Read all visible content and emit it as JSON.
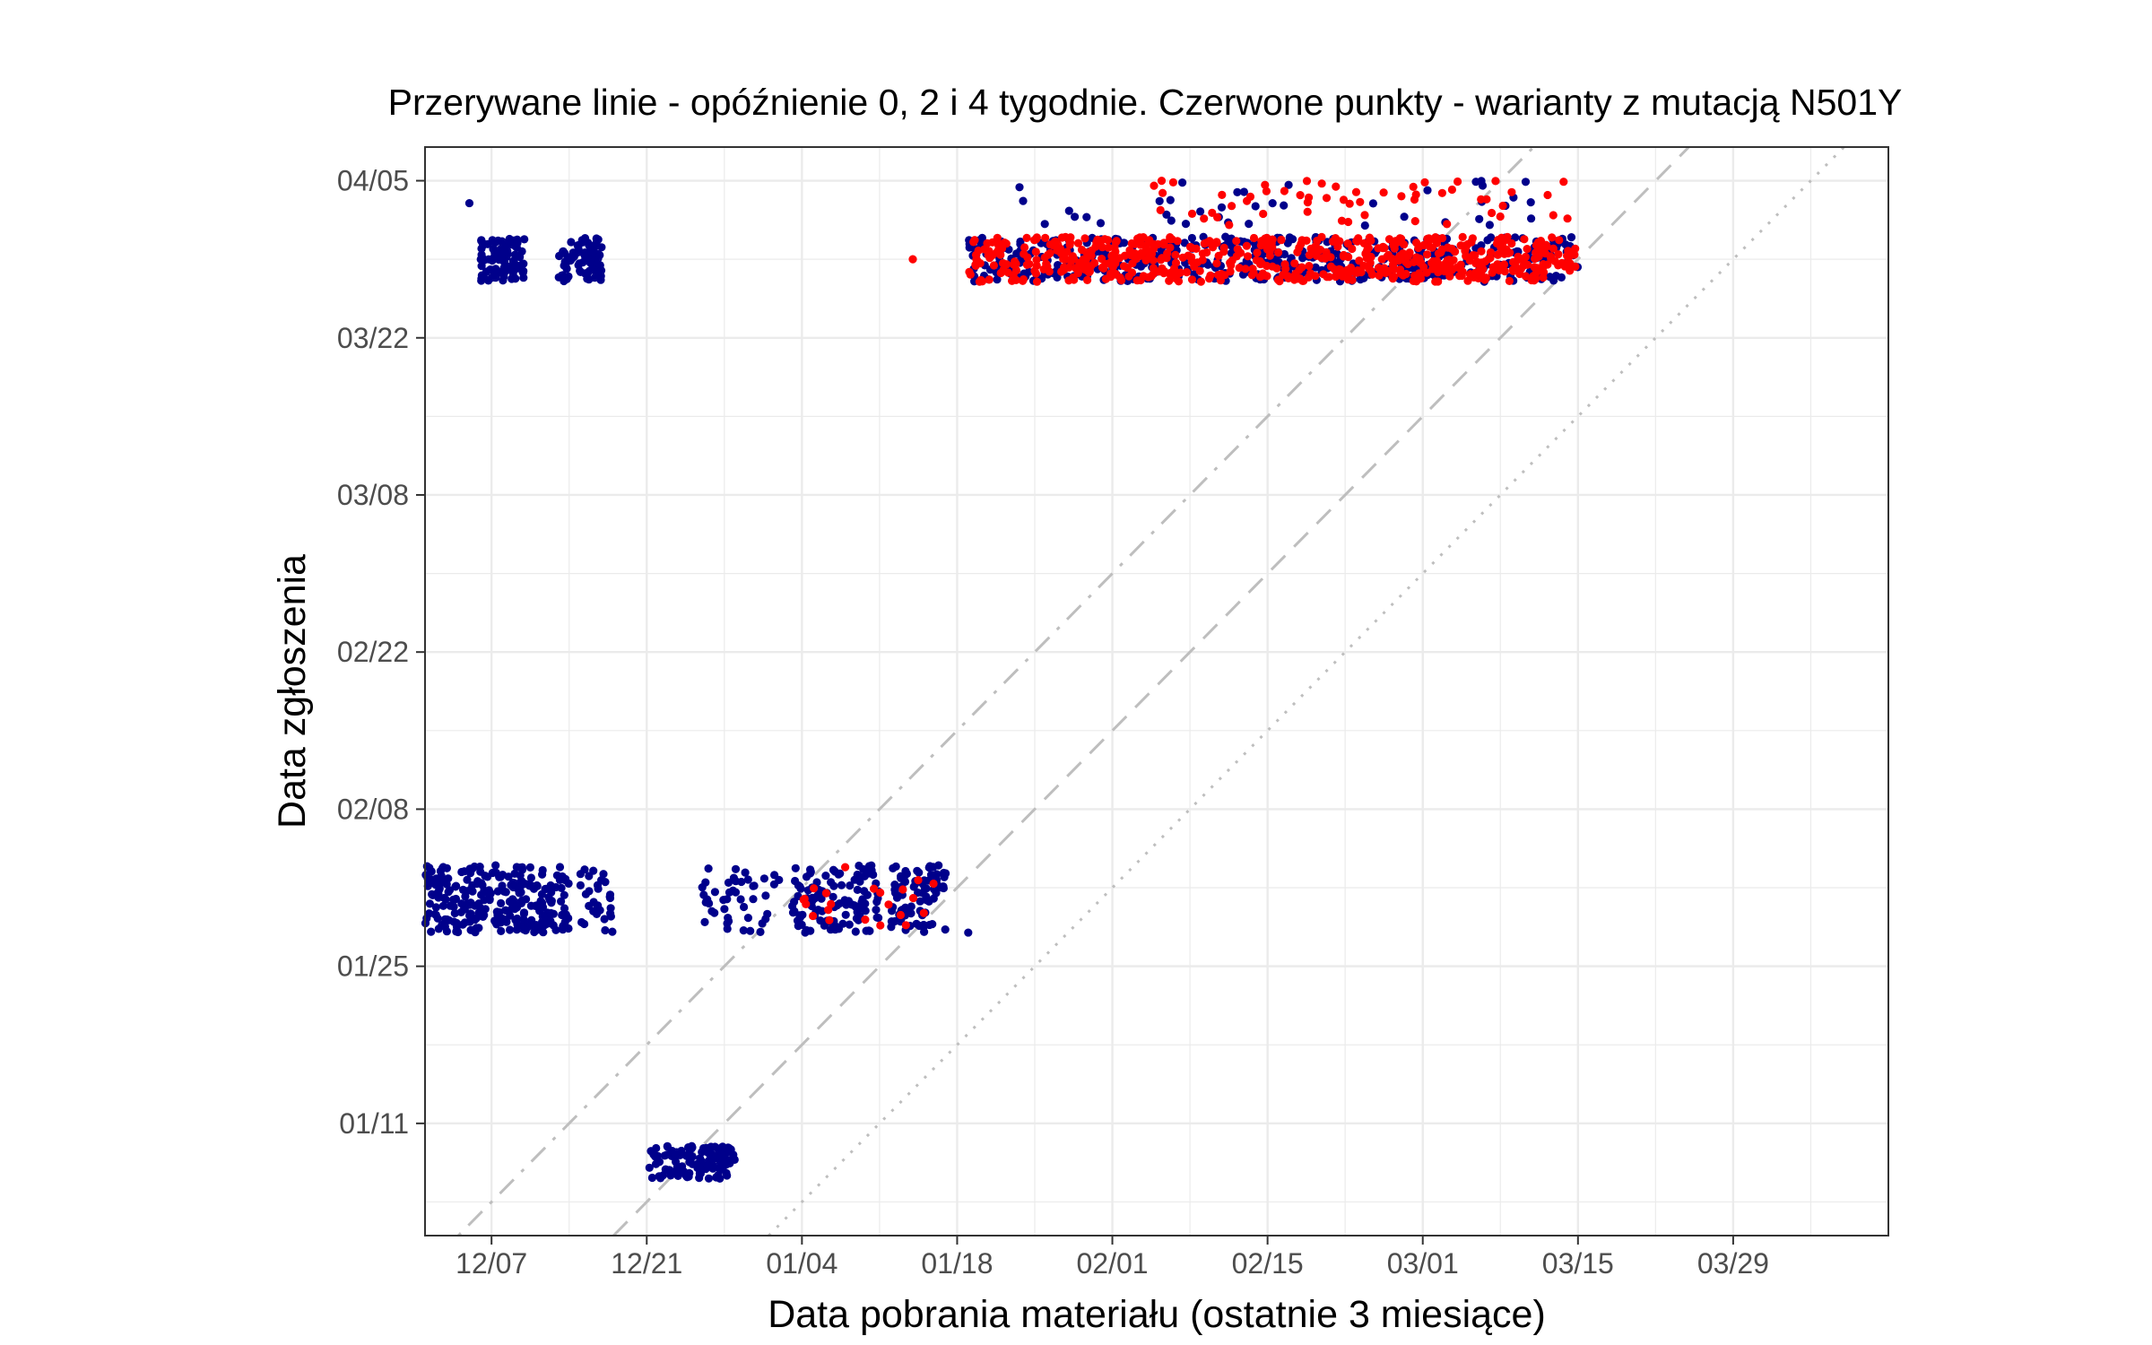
{
  "chart_data": {
    "type": "scatter",
    "title": "Przerywane linie - opóźnienie 0, 2 i 4 tygodnie. Czerwone punkty - warianty z mutacją N501Y",
    "xlabel": "Data pobrania materiału (ostatnie 3 miesiące)",
    "ylabel": "Data zgłoszenia",
    "x_axis": {
      "unit": "date",
      "range": [
        "2020-12-01",
        "2021-04-12"
      ],
      "ticks": [
        {
          "date": "2020-12-07",
          "label": "12/07"
        },
        {
          "date": "2020-12-21",
          "label": "12/21"
        },
        {
          "date": "2021-01-04",
          "label": "01/04"
        },
        {
          "date": "2021-01-18",
          "label": "01/18"
        },
        {
          "date": "2021-02-01",
          "label": "02/01"
        },
        {
          "date": "2021-02-15",
          "label": "02/15"
        },
        {
          "date": "2021-03-01",
          "label": "03/01"
        },
        {
          "date": "2021-03-15",
          "label": "03/15"
        },
        {
          "date": "2021-03-29",
          "label": "03/29"
        }
      ]
    },
    "y_axis": {
      "unit": "date",
      "range": [
        "2021-01-01",
        "2021-04-08"
      ],
      "ticks": [
        {
          "date": "2021-01-11",
          "label": "01/11"
        },
        {
          "date": "2021-01-25",
          "label": "01/25"
        },
        {
          "date": "2021-02-08",
          "label": "02/08"
        },
        {
          "date": "2021-02-22",
          "label": "02/22"
        },
        {
          "date": "2021-03-08",
          "label": "03/08"
        },
        {
          "date": "2021-03-22",
          "label": "03/22"
        },
        {
          "date": "2021-04-05",
          "label": "04/05"
        }
      ]
    },
    "grid": true,
    "reference_lines": [
      {
        "delay_weeks": 0,
        "style": "dotted",
        "color": "#bebebe"
      },
      {
        "delay_weeks": 2,
        "style": "dashed",
        "color": "#bebebe"
      },
      {
        "delay_weeks": 4,
        "style": "dotdash",
        "color": "#bebebe"
      }
    ],
    "colors": {
      "other": "#00008b",
      "n501y": "#ff0000"
    },
    "series": [
      {
        "variant": "other",
        "color": "#00008b",
        "clusters": [
          {
            "x": [
              "2020-12-01",
              "2020-12-14"
            ],
            "y": [
              "2021-01-28",
              "2021-02-03"
            ],
            "count": 260
          },
          {
            "x": [
              "2020-12-15",
              "2020-12-18"
            ],
            "y": [
              "2021-01-28",
              "2021-02-03"
            ],
            "count": 30
          },
          {
            "x": [
              "2020-12-26",
              "2021-01-02"
            ],
            "y": [
              "2021-01-28",
              "2021-02-03"
            ],
            "count": 45
          },
          {
            "x": [
              "2021-01-03",
              "2021-01-11"
            ],
            "y": [
              "2021-01-28",
              "2021-02-03"
            ],
            "count": 120
          },
          {
            "x": [
              "2021-01-12",
              "2021-01-17"
            ],
            "y": [
              "2021-01-28",
              "2021-02-03"
            ],
            "count": 80
          },
          {
            "x": [
              "2020-12-21",
              "2020-12-29"
            ],
            "y": [
              "2021-01-06",
              "2021-01-09"
            ],
            "count": 100
          },
          {
            "x": [
              "2020-12-06",
              "2020-12-10"
            ],
            "y": [
              "2021-03-27",
              "2021-03-31"
            ],
            "count": 90
          },
          {
            "x": [
              "2020-12-13",
              "2020-12-17"
            ],
            "y": [
              "2021-03-27",
              "2021-03-31"
            ],
            "count": 75
          },
          {
            "x": [
              "2021-01-19",
              "2021-03-15"
            ],
            "y": [
              "2021-03-27",
              "2021-03-31"
            ],
            "count": 470
          },
          {
            "x": [
              "2021-01-23",
              "2021-03-11"
            ],
            "y": [
              "2021-04-01",
              "2021-04-05"
            ],
            "count": 40
          }
        ]
      },
      {
        "variant": "n501y",
        "color": "#ff0000",
        "clusters": [
          {
            "x": [
              "2021-01-01",
              "2021-01-17"
            ],
            "y": [
              "2021-01-28",
              "2021-02-03"
            ],
            "count": 22
          },
          {
            "x": [
              "2021-01-19",
              "2021-03-15"
            ],
            "y": [
              "2021-03-27",
              "2021-03-31"
            ],
            "count": 620
          },
          {
            "x": [
              "2021-02-04",
              "2021-03-15"
            ],
            "y": [
              "2021-04-01",
              "2021-04-05"
            ],
            "count": 55
          }
        ]
      }
    ],
    "outliers": [
      {
        "x": "2020-12-05",
        "y": "2021-04-03",
        "variant": "other"
      },
      {
        "x": "2021-01-14",
        "y": "2021-03-29",
        "variant": "n501y"
      },
      {
        "x": "2021-01-19",
        "y": "2021-01-28",
        "variant": "other"
      }
    ]
  }
}
